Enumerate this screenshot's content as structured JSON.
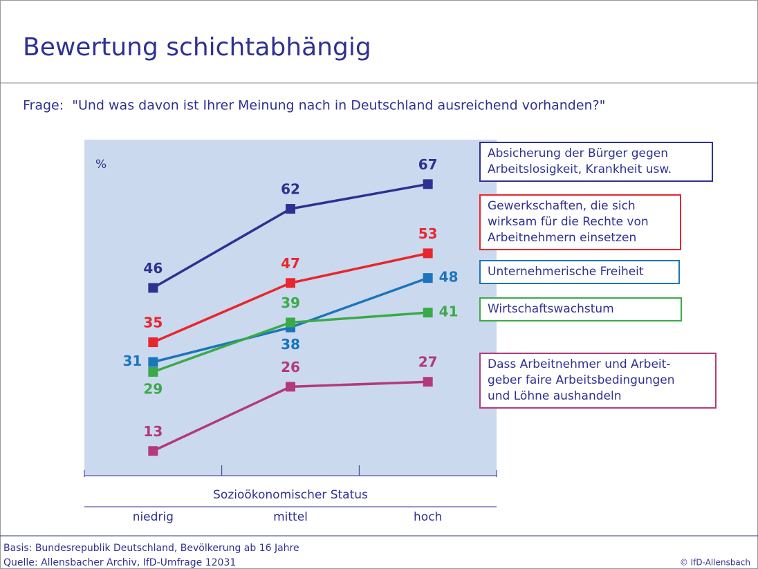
{
  "chart_data": {
    "type": "line",
    "title": "Bewertung schichtabhängig",
    "subtitle": "Frage:  \"Und was davon ist Ihrer Meinung nach in Deutschland ausreichend vorhanden?\"",
    "y_unit": "%",
    "x_label": "Sozioökonomischer Status",
    "categories": [
      "niedrig",
      "mittel",
      "hoch"
    ],
    "ylim": [
      8,
      76
    ],
    "series": [
      {
        "name": "Absicherung der Bürger gegen\nArbeitslosigkeit, Krankheit usw.",
        "color": "#2e3192",
        "values": [
          46,
          62,
          67
        ]
      },
      {
        "name": "Gewerkschaften, die sich\nwirksam für die Rechte von\nArbeitnehmern einsetzen",
        "color": "#e8262d",
        "values": [
          35,
          47,
          53
        ]
      },
      {
        "name": "Unternehmerische Freiheit",
        "color": "#1a75bc",
        "values": [
          31,
          38,
          48
        ]
      },
      {
        "name": "Wirtschaftswachstum",
        "color": "#3aaa49",
        "values": [
          29,
          39,
          41
        ]
      },
      {
        "name": "Dass Arbeitnehmer und Arbeit-\ngeber faire Arbeitsbedingungen\nund Löhne aushandeln",
        "color": "#b23a7a",
        "values": [
          13,
          26,
          27
        ]
      }
    ],
    "notes": [
      "Basis: Bundesrepublik Deutschland, Bevölkerung ab 16 Jahre",
      "Quelle: Allensbacher Archiv, IfD-Umfrage 12031"
    ],
    "credit": "© IfD-Allensbach"
  }
}
